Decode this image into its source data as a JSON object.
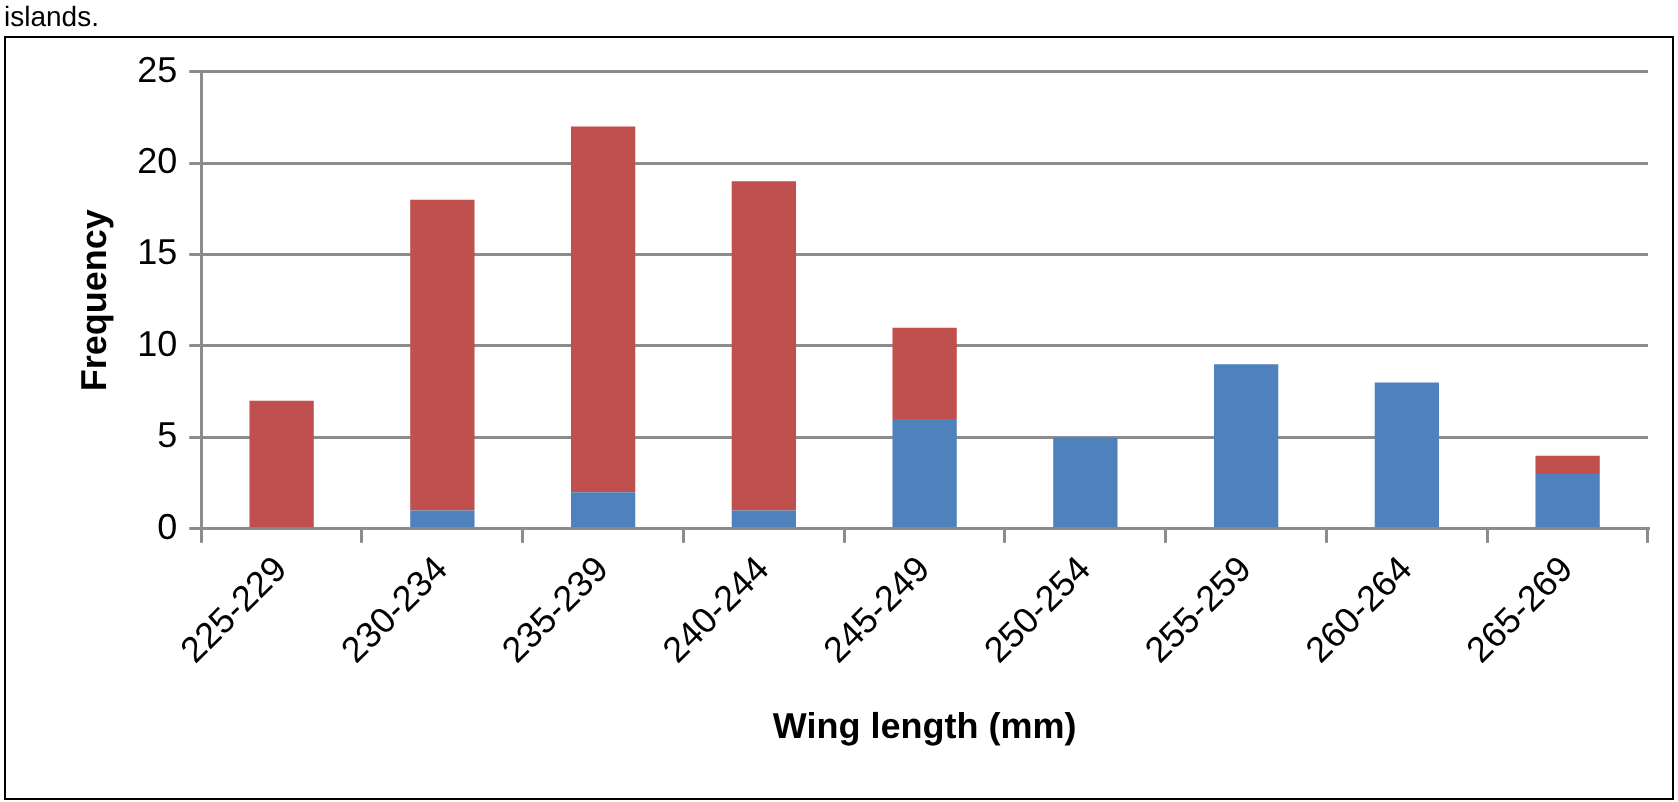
{
  "chart_data": {
    "type": "bar",
    "xlabel": "Wing length (mm)",
    "ylabel": "Frequency",
    "annotations": [
      "islands."
    ],
    "categories": [
      "225-229",
      "230-234",
      "235-239",
      "240-244",
      "245-249",
      "250-254",
      "255-259",
      "260-264",
      "265-269"
    ],
    "series": [
      {
        "color": "#4f81bd",
        "values": [
          0,
          1,
          2,
          1,
          6,
          5,
          9,
          8,
          3
        ]
      },
      {
        "color": "#c0504d",
        "values": [
          7,
          17,
          20,
          18,
          5,
          0,
          0,
          0,
          1
        ]
      }
    ],
    "stacked": true,
    "ylim": [
      0,
      25
    ],
    "yticks": [
      0,
      5,
      10,
      15,
      20,
      25
    ],
    "grid": "y",
    "legend": false
  }
}
